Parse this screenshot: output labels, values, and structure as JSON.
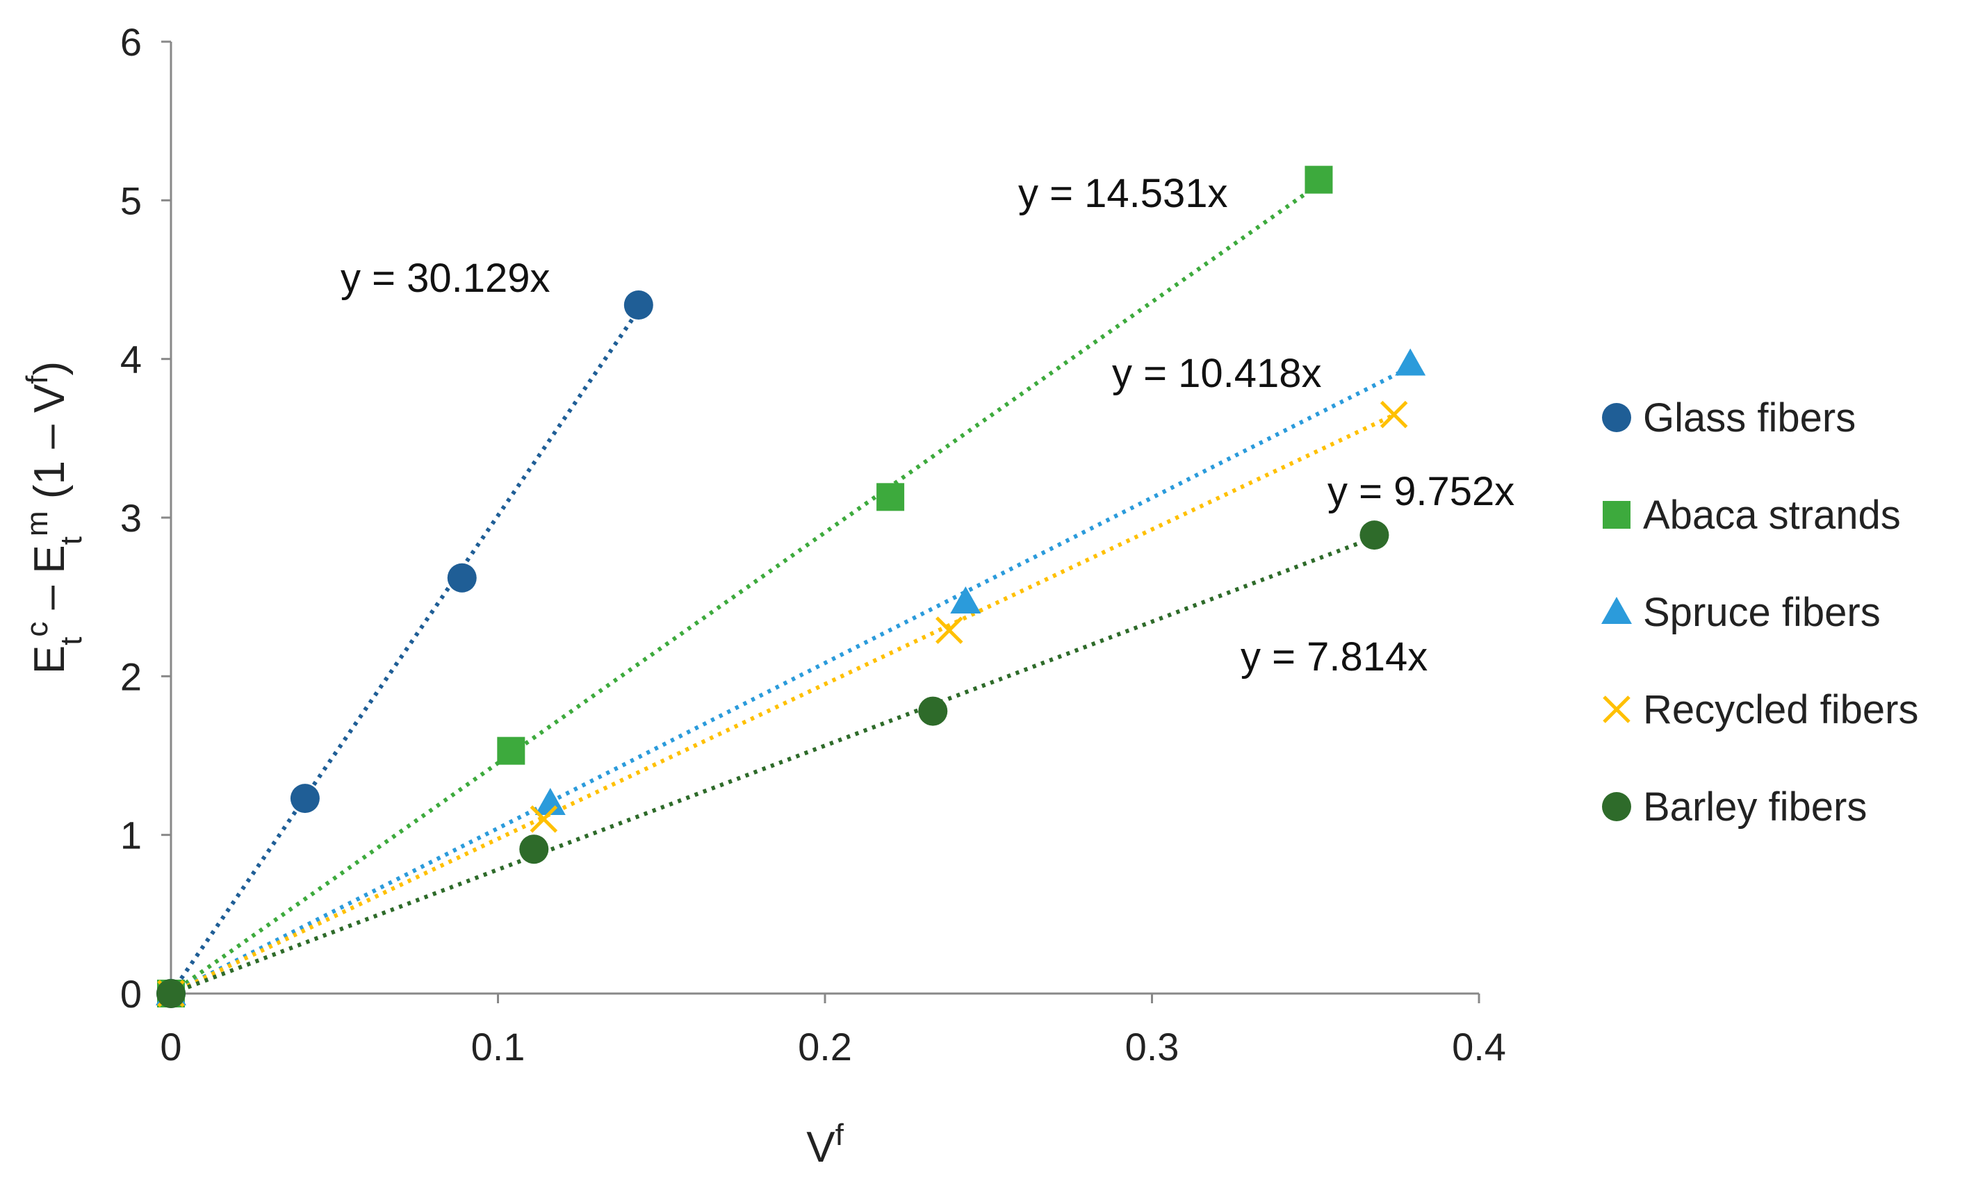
{
  "chart_data": {
    "type": "scatter",
    "title": "",
    "xlabel": {
      "base": "V",
      "sup": "f"
    },
    "ylabel": {
      "parts": [
        {
          "t": "E",
          "k": "base"
        },
        {
          "t": "t",
          "k": "sub"
        },
        {
          "t": "c",
          "k": "sup"
        },
        {
          "t": " – E",
          "k": "base"
        },
        {
          "t": "t",
          "k": "sub"
        },
        {
          "t": "m",
          "k": "sup"
        },
        {
          "t": " (1 – V",
          "k": "base"
        },
        {
          "t": "f",
          "k": "sup"
        },
        {
          "t": ")",
          "k": "base"
        }
      ]
    },
    "xlim": [
      0,
      0.4
    ],
    "ylim": [
      0,
      6
    ],
    "xticks": [
      0,
      0.1,
      0.2,
      0.3,
      0.4
    ],
    "xtick_labels": [
      "0",
      "0.1",
      "0.2",
      "0.3",
      "0.4"
    ],
    "yticks": [
      0,
      1,
      2,
      3,
      4,
      5,
      6
    ],
    "ytick_labels": [
      "0",
      "1",
      "2",
      "3",
      "4",
      "5",
      "6"
    ],
    "grid": false,
    "legend_position": "right",
    "series": [
      {
        "name": "Glass fibers",
        "marker": "circle",
        "color": "#1F5E96",
        "slope": 30.129,
        "trendline": "y = 30.129x",
        "points": [
          [
            0,
            0
          ],
          [
            0.041,
            1.23
          ],
          [
            0.089,
            2.62
          ],
          [
            0.143,
            4.34
          ]
        ]
      },
      {
        "name": "Abaca strands",
        "marker": "square",
        "color": "#3DAA3D",
        "slope": 14.531,
        "trendline": "y = 14.531x",
        "points": [
          [
            0,
            0
          ],
          [
            0.104,
            1.53
          ],
          [
            0.22,
            3.13
          ],
          [
            0.351,
            5.13
          ]
        ]
      },
      {
        "name": "Spruce fibers",
        "marker": "triangle",
        "color": "#2B9BDB",
        "slope": 10.418,
        "trendline": "y = 10.418x",
        "points": [
          [
            0,
            0
          ],
          [
            0.116,
            1.2
          ],
          [
            0.243,
            2.47
          ],
          [
            0.379,
            3.97
          ]
        ]
      },
      {
        "name": "Recycled fibers",
        "marker": "x",
        "color": "#FFC000",
        "slope": 9.752,
        "trendline": "y = 9.752x",
        "points": [
          [
            0,
            0
          ],
          [
            0.114,
            1.1
          ],
          [
            0.238,
            2.29
          ],
          [
            0.374,
            3.65
          ]
        ]
      },
      {
        "name": "Barley fibers",
        "marker": "circle",
        "color": "#2E6B2A",
        "slope": 7.814,
        "trendline": "y = 7.814x",
        "points": [
          [
            0,
            0
          ],
          [
            0.111,
            0.91
          ],
          [
            0.233,
            1.78
          ],
          [
            0.368,
            2.89
          ]
        ]
      }
    ]
  }
}
